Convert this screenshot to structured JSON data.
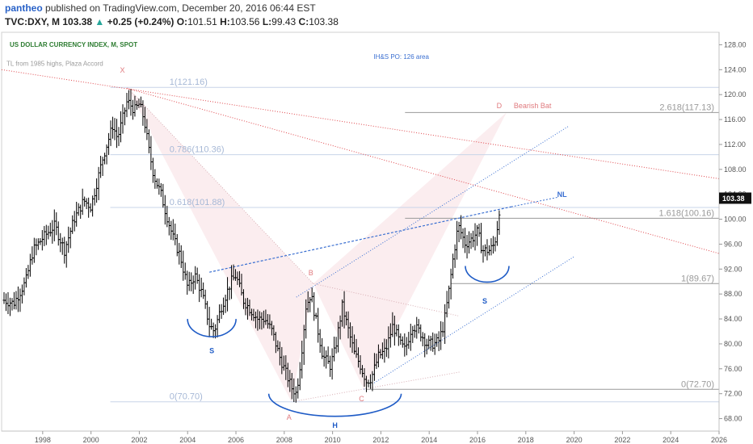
{
  "header": {
    "author": "pantheo",
    "published_text": "published on TradingView.com, December 20, 2016 06:44 EST",
    "symbol": "TVC:DXY, M",
    "price": "103.38",
    "change_arrow": "▲",
    "change": "+0.25 (+0.24%)",
    "o_label": "O:",
    "o_value": "101.51",
    "h_label": "H:",
    "h_value": "103.56",
    "l_label": "L:",
    "l_value": "99.43",
    "c_label": "C:",
    "c_value": "103.38"
  },
  "colors": {
    "bars": "#000000",
    "up": "#26a69a",
    "fib": "#c8d4e8",
    "fib_label": "#a6b8d6",
    "gray_line": "#999999",
    "pattern_fill": "#f9e3e6",
    "blue_trend": "#3a6fd1",
    "red_trend": "#e0484d",
    "arc": "#1e5bc6",
    "title": "#2e7d32"
  },
  "chart_data": {
    "type": "candlestick",
    "title": "US DOLLAR CURRENCY INDEX, M, SPOT",
    "ylim": [
      66,
      130
    ],
    "yticks": [
      68,
      72,
      76,
      80,
      84,
      88,
      92,
      96,
      100,
      104,
      108,
      112,
      116,
      120,
      124,
      128
    ],
    "ytick_labels": [
      "68.00",
      "72.00",
      "76.00",
      "80.00",
      "84.00",
      "88.00",
      "92.00",
      "96.00",
      "100.00",
      "104.00",
      "108.00",
      "112.00",
      "116.00",
      "120.00",
      "124.00",
      "128.00"
    ],
    "xlim": [
      1996.3,
      2026
    ],
    "xticks": [
      1998,
      2000,
      2002,
      2004,
      2006,
      2008,
      2010,
      2012,
      2014,
      2016,
      2018,
      2020,
      2022,
      2024,
      2026
    ],
    "xtick_labels": [
      "1998",
      "2000",
      "2002",
      "2004",
      "2006",
      "2008",
      "2010",
      "2012",
      "2014",
      "2016",
      "2018",
      "2020",
      "2022",
      "2024",
      "2026"
    ],
    "last_price": "103.38",
    "last_price_value": 103.38,
    "price_path": [
      [
        1996.4,
        87
      ],
      [
        1996.8,
        86.5
      ],
      [
        1997.3,
        90
      ],
      [
        1997.6,
        95
      ],
      [
        1998.0,
        97
      ],
      [
        1998.5,
        99
      ],
      [
        1998.9,
        95
      ],
      [
        1999.3,
        100
      ],
      [
        1999.7,
        103
      ],
      [
        2000.0,
        102
      ],
      [
        2000.5,
        110
      ],
      [
        2000.9,
        115
      ],
      [
        2001.1,
        113
      ],
      [
        2001.5,
        119
      ],
      [
        2001.8,
        117.5
      ],
      [
        2002.0,
        118.5
      ],
      [
        2002.2,
        116
      ],
      [
        2002.4,
        111
      ],
      [
        2002.6,
        107
      ],
      [
        2002.9,
        104
      ],
      [
        2003.1,
        101
      ],
      [
        2003.4,
        97
      ],
      [
        2003.7,
        94
      ],
      [
        2004.0,
        89
      ],
      [
        2004.3,
        91
      ],
      [
        2004.6,
        88
      ],
      [
        2004.9,
        83
      ],
      [
        2005.1,
        82
      ],
      [
        2005.4,
        86
      ],
      [
        2005.8,
        90
      ],
      [
        2006.0,
        91
      ],
      [
        2006.3,
        87
      ],
      [
        2006.6,
        85.5
      ],
      [
        2006.9,
        84
      ],
      [
        2007.2,
        84
      ],
      [
        2007.5,
        82
      ],
      [
        2007.8,
        78
      ],
      [
        2008.0,
        76
      ],
      [
        2008.3,
        73
      ],
      [
        2008.5,
        72
      ],
      [
        2008.7,
        78
      ],
      [
        2008.9,
        86
      ],
      [
        2009.1,
        88
      ],
      [
        2009.3,
        84
      ],
      [
        2009.6,
        78
      ],
      [
        2009.9,
        76.5
      ],
      [
        2010.1,
        79
      ],
      [
        2010.4,
        86
      ],
      [
        2010.6,
        83
      ],
      [
        2010.9,
        78.5
      ],
      [
        2011.1,
        77
      ],
      [
        2011.4,
        74
      ],
      [
        2011.6,
        74.5
      ],
      [
        2011.9,
        78
      ],
      [
        2012.2,
        79
      ],
      [
        2012.5,
        83
      ],
      [
        2012.8,
        80
      ],
      [
        2013.0,
        79
      ],
      [
        2013.3,
        83
      ],
      [
        2013.6,
        82
      ],
      [
        2013.9,
        80
      ],
      [
        2014.2,
        80
      ],
      [
        2014.4,
        80.5
      ],
      [
        2014.6,
        83
      ],
      [
        2014.8,
        88
      ],
      [
        2015.0,
        94
      ],
      [
        2015.2,
        99
      ],
      [
        2015.5,
        96
      ],
      [
        2015.8,
        97
      ],
      [
        2016.0,
        98
      ],
      [
        2016.2,
        95
      ],
      [
        2016.5,
        95
      ],
      [
        2016.7,
        96
      ],
      [
        2016.85,
        99.5
      ],
      [
        2016.95,
        103.38
      ]
    ],
    "fib_levels": [
      {
        "label": "1(121.16)",
        "value": 121.16
      },
      {
        "label": "0.786(110.36)",
        "value": 110.36
      },
      {
        "label": "0.618(101.88)",
        "value": 101.88
      },
      {
        "label": "0(70.70)",
        "value": 70.7
      }
    ],
    "target_levels": [
      {
        "label": "2.618(117.13)",
        "value": 117.13
      },
      {
        "label": "1.618(100.16)",
        "value": 100.16
      },
      {
        "label": "1(89.67)",
        "value": 89.67
      },
      {
        "label": "0(72.70)",
        "value": 72.7
      }
    ],
    "pattern_points": [
      {
        "label": "X",
        "x": 2001.5,
        "y": 121.16
      },
      {
        "label": "A",
        "x": 2008.3,
        "y": 70.7
      },
      {
        "label": "B",
        "x": 2009.2,
        "y": 89.67
      },
      {
        "label": "C",
        "x": 2011.3,
        "y": 72.7
      },
      {
        "label": "D",
        "x": 2017.2,
        "y": 117.13
      }
    ],
    "pattern_labels": [
      "X",
      "A",
      "B",
      "C",
      "D",
      "H",
      "S",
      "S"
    ],
    "annotations": {
      "trend_note": "TL from 1985 highs, Plaza Accord",
      "ihs_po": "IH&S PO: 126 area",
      "bearish_bat": "Bearish Bat",
      "neckline": "NL"
    }
  }
}
